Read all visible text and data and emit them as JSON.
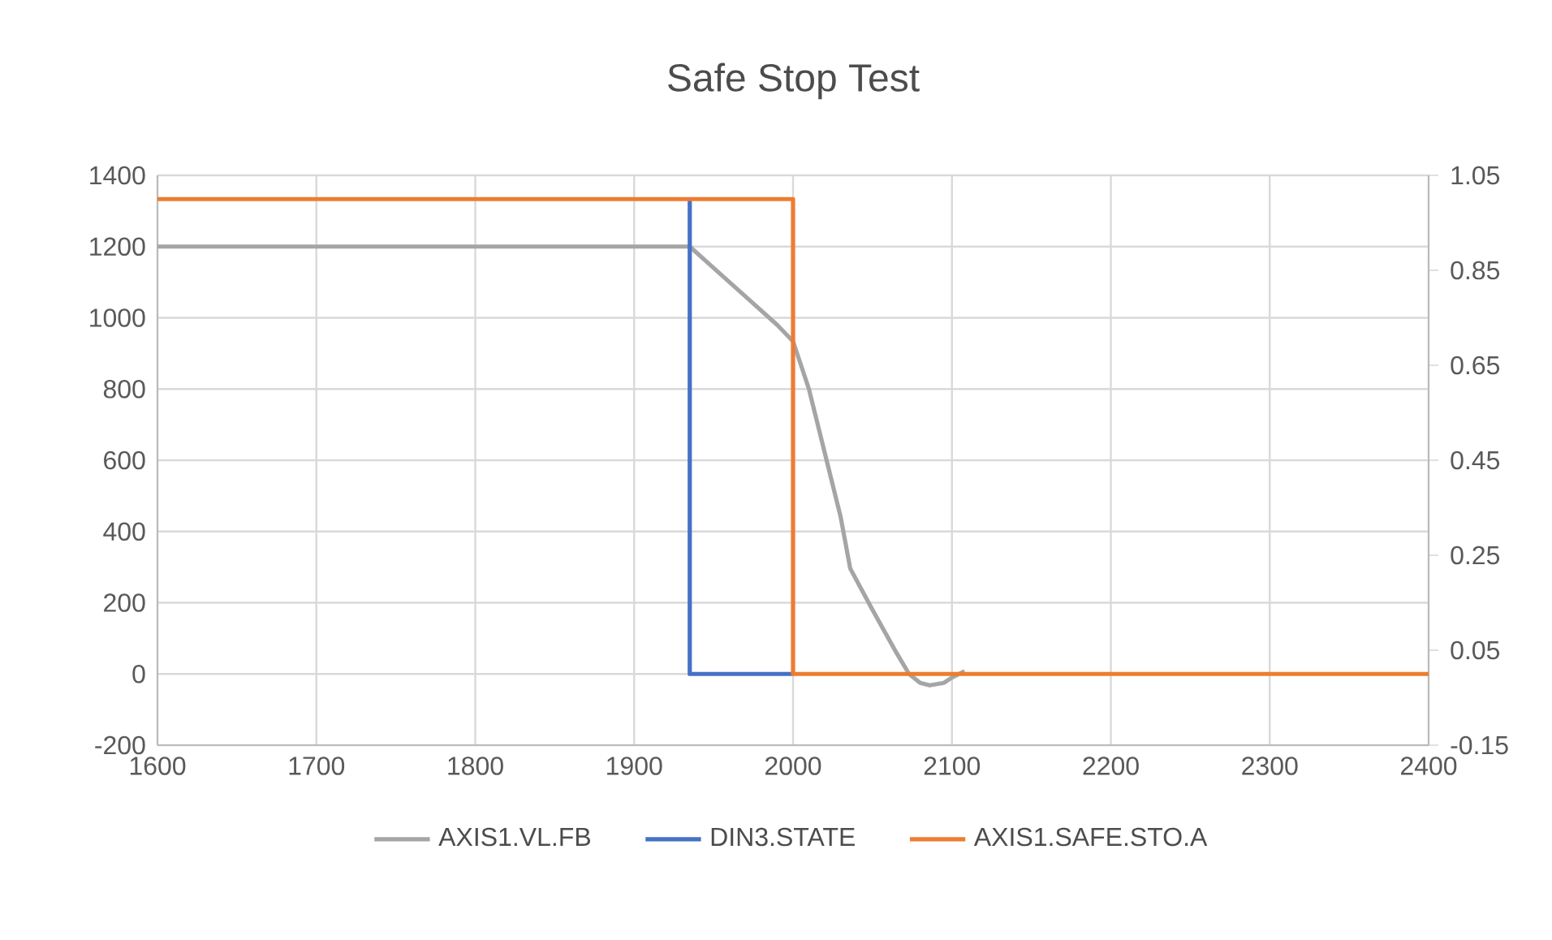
{
  "chart_data": {
    "type": "line",
    "title": "Safe Stop Test",
    "xlim": [
      1600,
      2400
    ],
    "xticks": [
      1600,
      1700,
      1800,
      1900,
      2000,
      2100,
      2200,
      2300,
      2400
    ],
    "ylim": [
      -200,
      1400
    ],
    "yticks": [
      -200,
      0,
      200,
      400,
      600,
      800,
      1000,
      1200,
      1400
    ],
    "y2lim": [
      -0.15,
      1.05
    ],
    "y2ticks": [
      -0.15,
      0.05,
      0.25,
      0.45,
      0.65,
      0.85,
      1.05
    ],
    "grid": true,
    "legend": "bottom",
    "series": [
      {
        "name": "AXIS1.VL.FB",
        "color": "#a5a5a5",
        "x": [
          1600,
          1650,
          1700,
          1750,
          1800,
          1850,
          1900,
          1935,
          1950,
          1970,
          1990,
          2000,
          2010,
          2020,
          2030,
          2036,
          2050,
          2065,
          2073,
          2080,
          2086,
          2095,
          2100,
          2108
        ],
        "values": [
          1200,
          1200,
          1200,
          1200,
          1200,
          1200,
          1200,
          1200,
          1140,
          1060,
          980,
          934,
          800,
          620,
          440,
          296,
          180,
          60,
          0,
          -25,
          -32,
          -25,
          -10,
          8
        ]
      },
      {
        "name": "DIN3.STATE",
        "color": "#4472c4",
        "axis": "y2",
        "x": [
          1935,
          1935,
          2000
        ],
        "values": [
          1,
          0,
          0
        ]
      },
      {
        "name": "AXIS1.SAFE.STO.A",
        "color": "#ed7d31",
        "axis": "y2",
        "x": [
          1600,
          2000,
          2000,
          2400
        ],
        "values": [
          1,
          1,
          0,
          0
        ]
      }
    ]
  }
}
